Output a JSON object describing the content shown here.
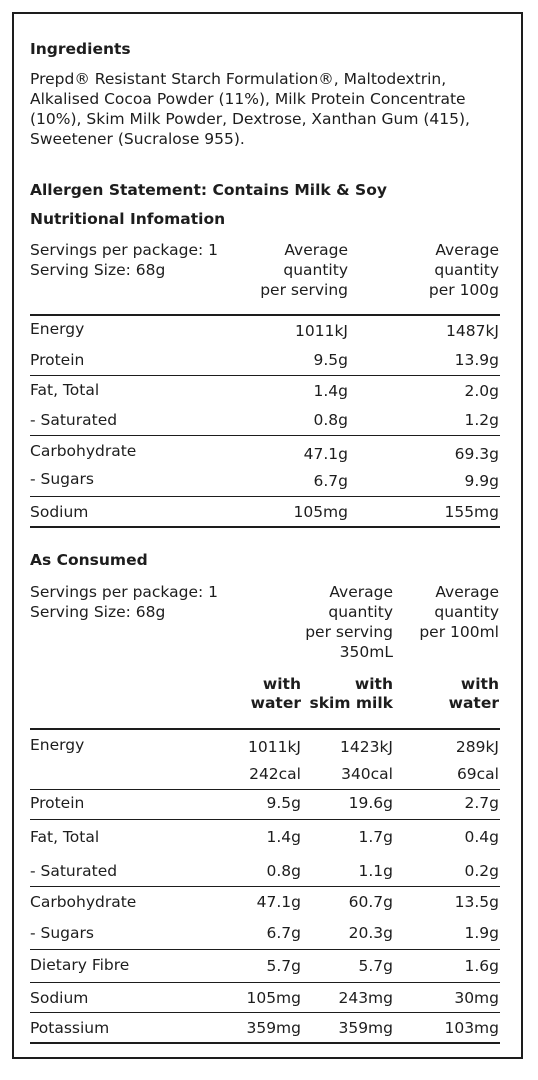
{
  "ingredients": {
    "heading": "Ingredients",
    "text": "Prepd® Resistant Starch Formulation®, Maltodextrin, Alkalised Cocoa Powder (11%), Milk Protein Concentrate (10%), Skim Milk Powder, Dextrose, Xanthan Gum (415), Sweetener (Sucralose 955)."
  },
  "allergen": "Allergen Statement: Contains Milk & Soy",
  "nutrition": {
    "heading": "Nutritional Infomation",
    "servings_per_package": "Servings per package: 1",
    "serving_size": "Serving Size: 68g",
    "col1": [
      "Average",
      "quantity",
      "per serving"
    ],
    "col2": [
      "Average",
      "quantity",
      "per 100g"
    ],
    "rows": [
      {
        "label": "Energy",
        "v1": "1011kJ",
        "v2": "1487kJ"
      },
      {
        "label": "Protein",
        "v1": "9.5g",
        "v2": "13.9g"
      },
      {
        "label": "Fat, Total",
        "v1": "1.4g",
        "v2": "2.0g"
      },
      {
        "label": "- Saturated",
        "v1": "0.8g",
        "v2": "1.2g"
      },
      {
        "label": "Carbohydrate",
        "v1": "47.1g",
        "v2": "69.3g"
      },
      {
        "label": "- Sugars",
        "v1": "6.7g",
        "v2": "9.9g"
      },
      {
        "label": "Sodium",
        "v1": "105mg",
        "v2": "155mg"
      }
    ]
  },
  "consumed": {
    "heading": "As Consumed",
    "servings_per_package": "Servings per package: 1",
    "serving_size": "Serving Size: 68g",
    "group_serving": [
      "Average",
      "quantity",
      "per serving",
      "350mL"
    ],
    "group_100ml": [
      "Average",
      "quantity",
      "per 100ml"
    ],
    "col_water": [
      "with",
      "water"
    ],
    "col_skim": [
      "with",
      "skim milk"
    ],
    "col_water2": [
      "with",
      "water"
    ],
    "rows": [
      {
        "label": "Energy",
        "v1": "1011kJ",
        "v2": "1423kJ",
        "v3": "289kJ"
      },
      {
        "label": "",
        "v1": "242cal",
        "v2": "340cal",
        "v3": "69cal"
      },
      {
        "label": "Protein",
        "v1": "9.5g",
        "v2": "19.6g",
        "v3": "2.7g"
      },
      {
        "label": "Fat, Total",
        "v1": "1.4g",
        "v2": "1.7g",
        "v3": "0.4g"
      },
      {
        "label": "- Saturated",
        "v1": "0.8g",
        "v2": "1.1g",
        "v3": "0.2g"
      },
      {
        "label": "Carbohydrate",
        "v1": "47.1g",
        "v2": "60.7g",
        "v3": "13.5g"
      },
      {
        "label": "- Sugars",
        "v1": "6.7g",
        "v2": "20.3g",
        "v3": "1.9g"
      },
      {
        "label": "Dietary Fibre",
        "v1": "5.7g",
        "v2": "5.7g",
        "v3": "1.6g"
      },
      {
        "label": "Sodium",
        "v1": "105mg",
        "v2": "243mg",
        "v3": "30mg"
      },
      {
        "label": "Potassium",
        "v1": "359mg",
        "v2": "359mg",
        "v3": "103mg"
      }
    ]
  }
}
